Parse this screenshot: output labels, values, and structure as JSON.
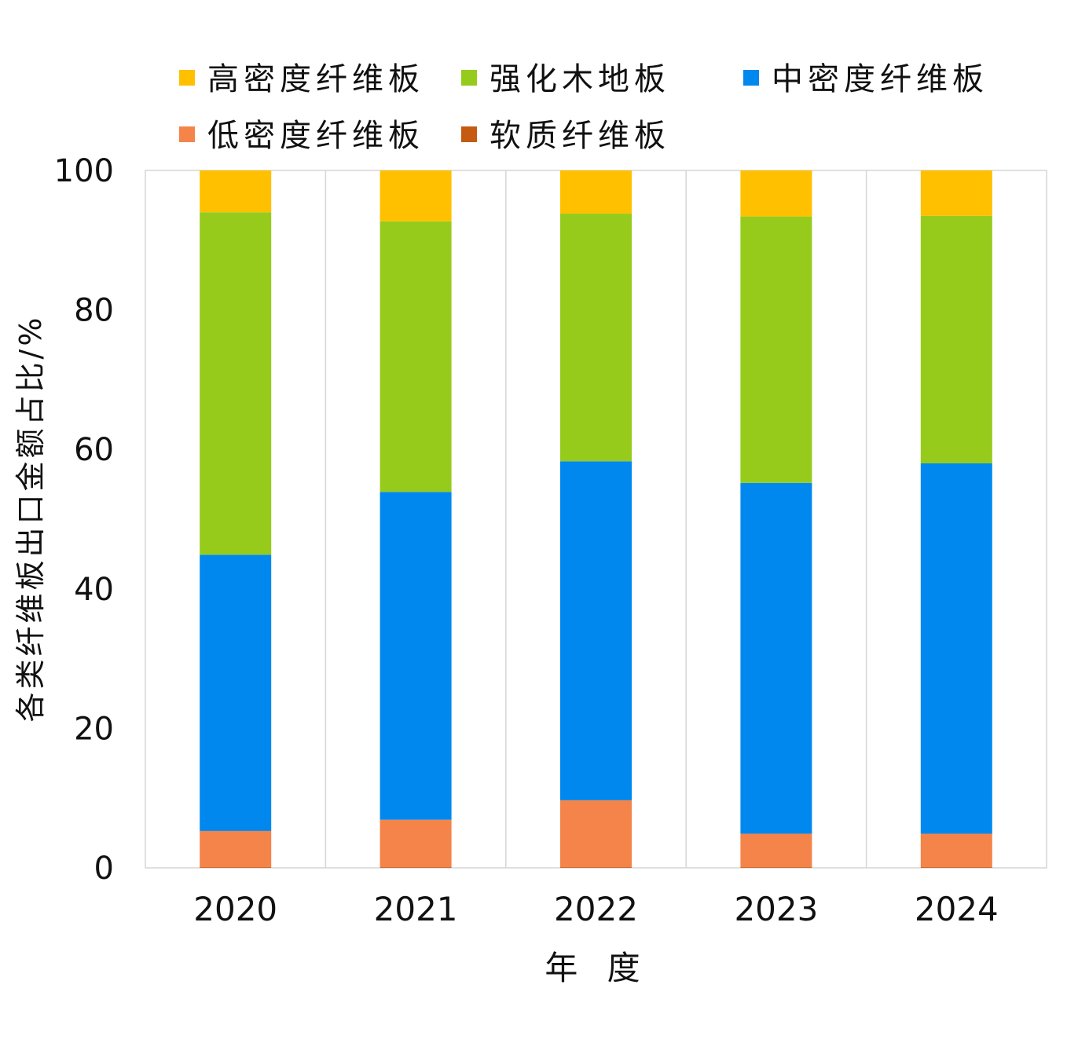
{
  "chart_data": {
    "type": "bar",
    "stacked": true,
    "title": "",
    "xlabel": "年 度",
    "ylabel": "各类纤维板出口金额占比/%",
    "ylim": [
      0,
      100
    ],
    "yticks": [
      0,
      20,
      40,
      60,
      80,
      100
    ],
    "grid": false,
    "legend_position": "top",
    "categories": [
      "2020",
      "2021",
      "2022",
      "2023",
      "2024"
    ],
    "series": [
      {
        "name": "软质纤维板",
        "color": "#C55A11",
        "values": [
          0.1,
          0.1,
          0.1,
          0.1,
          0.1
        ]
      },
      {
        "name": "低密度纤维板",
        "color": "#F4844A",
        "values": [
          5.2,
          6.8,
          9.6,
          4.8,
          4.8
        ]
      },
      {
        "name": "中密度纤维板",
        "color": "#0088EE",
        "values": [
          39.6,
          47.0,
          48.6,
          50.3,
          53.1
        ]
      },
      {
        "name": "强化木地板",
        "color": "#96CB1C",
        "values": [
          49.1,
          38.8,
          35.5,
          38.2,
          35.5
        ]
      },
      {
        "name": "高密度纤维板",
        "color": "#FFC000",
        "values": [
          6.0,
          7.3,
          6.2,
          6.6,
          6.5
        ]
      }
    ],
    "legend_order": [
      "高密度纤维板",
      "强化木地板",
      "中密度纤维板",
      "低密度纤维板",
      "软质纤维板"
    ]
  }
}
